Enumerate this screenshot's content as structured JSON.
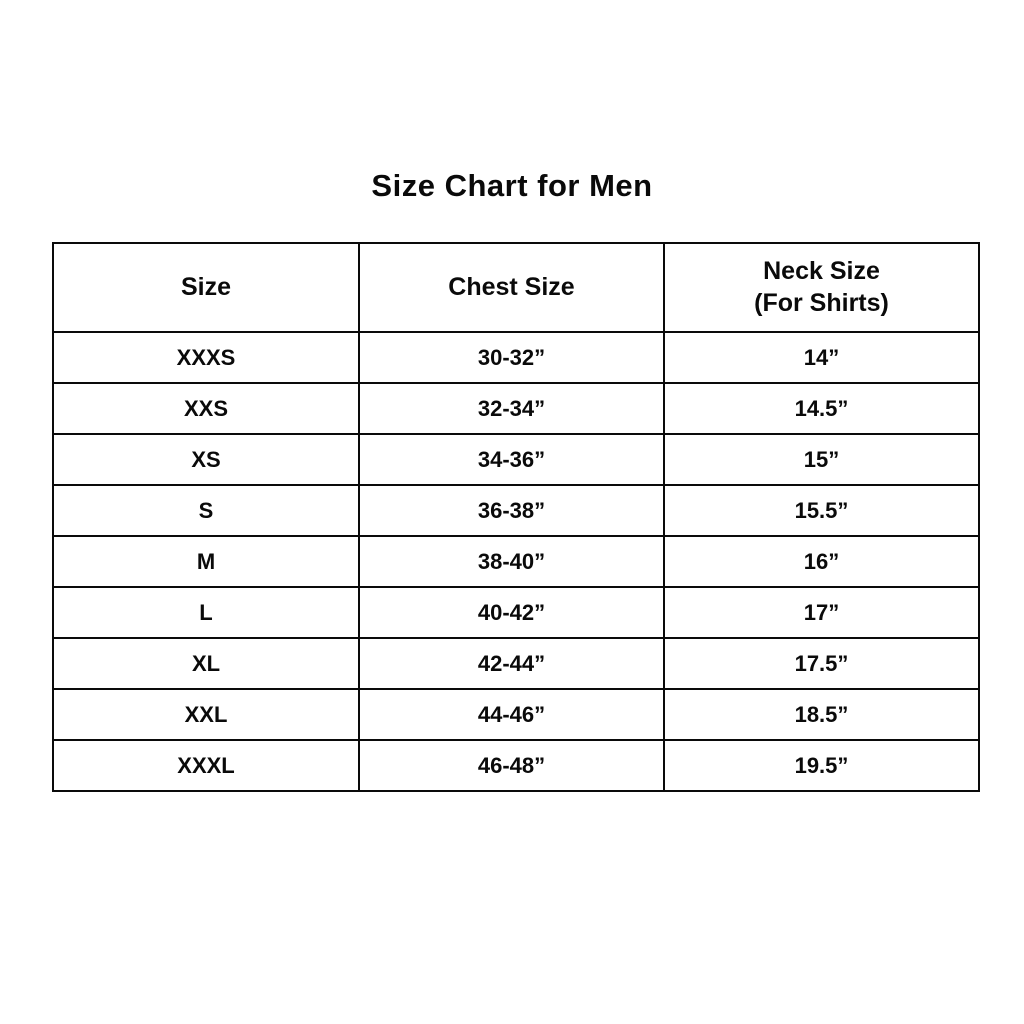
{
  "title": "Size Chart for Men",
  "table": {
    "headers": {
      "size": "Size",
      "chest": "Chest Size",
      "neck_line1": "Neck Size",
      "neck_line2": "(For Shirts)"
    },
    "rows": [
      {
        "size": "XXXS",
        "chest": "30-32”",
        "neck": "14”"
      },
      {
        "size": "XXS",
        "chest": "32-34”",
        "neck": "14.5”"
      },
      {
        "size": "XS",
        "chest": "34-36”",
        "neck": "15”"
      },
      {
        "size": "S",
        "chest": "36-38”",
        "neck": "15.5”"
      },
      {
        "size": "M",
        "chest": "38-40”",
        "neck": "16”"
      },
      {
        "size": "L",
        "chest": "40-42”",
        "neck": "17”"
      },
      {
        "size": "XL",
        "chest": "42-44”",
        "neck": "17.5”"
      },
      {
        "size": "XXL",
        "chest": "44-46”",
        "neck": "18.5”"
      },
      {
        "size": "XXXL",
        "chest": "46-48”",
        "neck": "19.5”"
      }
    ]
  },
  "colors": {
    "background": "#ffffff",
    "text": "#0a0a0a",
    "border": "#0a0a0a"
  }
}
